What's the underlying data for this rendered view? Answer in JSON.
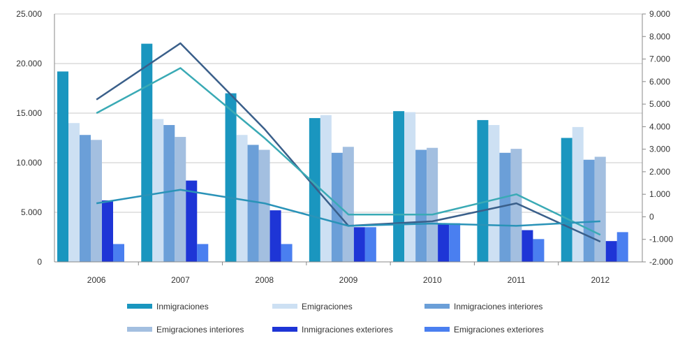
{
  "chart_data": {
    "type": "bar",
    "title": "",
    "xlabel": "",
    "ylabel": "",
    "categories": [
      "2006",
      "2007",
      "2008",
      "2009",
      "2010",
      "2011",
      "2012"
    ],
    "ylim": [
      0,
      25000
    ],
    "y2lim": [
      -2000,
      9000
    ],
    "yticks": [
      "0",
      "5.000",
      "10.000",
      "15.000",
      "20.000",
      "25.000"
    ],
    "y2ticks": [
      "-2.000",
      "-1.000",
      "0",
      "1.000",
      "2.000",
      "3.000",
      "4.000",
      "5.000",
      "6.000",
      "7.000",
      "8.000",
      "9.000"
    ],
    "grid": true,
    "legend_position": "bottom",
    "series": [
      {
        "name": "Inmigraciones",
        "axis": "left",
        "color": "#1a96bf",
        "values": [
          19200,
          22000,
          17000,
          14500,
          15200,
          14300,
          12500
        ]
      },
      {
        "name": "Emigraciones",
        "axis": "left",
        "color": "#cde0f3",
        "values": [
          14000,
          14400,
          12800,
          14800,
          15100,
          13800,
          13600
        ]
      },
      {
        "name": "Inmigraciones interiores",
        "axis": "left",
        "color": "#6b9fd8",
        "values": [
          12800,
          13800,
          11800,
          11000,
          11300,
          11000,
          10300
        ]
      },
      {
        "name": "Emigraciones interiores",
        "axis": "left",
        "color": "#a3bfe0",
        "values": [
          12300,
          12600,
          11300,
          11600,
          11500,
          11400,
          10600
        ]
      },
      {
        "name": "Inmigraciones exteriores",
        "axis": "left",
        "color": "#1e35d6",
        "values": [
          6200,
          8200,
          5200,
          3500,
          3900,
          3200,
          2100
        ]
      },
      {
        "name": "Emigraciones exteriores",
        "axis": "left",
        "color": "#4a7ff0",
        "values": [
          1800,
          1800,
          1800,
          3500,
          3900,
          2300,
          3000
        ]
      }
    ],
    "line_series": [
      {
        "axis": "right",
        "color": "#3a5f8a",
        "values": [
          5200,
          7700,
          3900,
          -400,
          -200,
          600,
          -1100
        ]
      },
      {
        "axis": "right",
        "color": "#3aaab5",
        "values": [
          4600,
          6600,
          3500,
          100,
          100,
          1000,
          -800
        ]
      },
      {
        "axis": "right",
        "color": "#2a93b8",
        "values": [
          600,
          1200,
          600,
          -400,
          -300,
          -400,
          -200
        ]
      }
    ]
  }
}
